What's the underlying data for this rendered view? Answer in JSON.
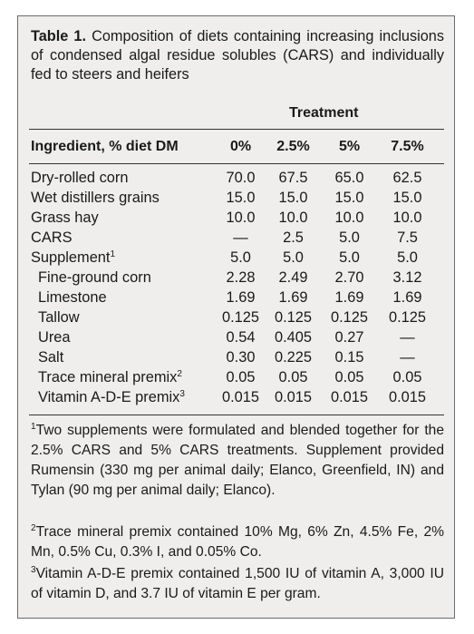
{
  "caption": {
    "label": "Table 1.",
    "text": "Composition of diets containing increasing inclusions of condensed algal residue solubles (CARS) and individually fed to steers and heifers"
  },
  "spanner": "Treatment",
  "headers": [
    "Ingredient, % diet DM",
    "0%",
    "2.5%",
    "5%",
    "7.5%"
  ],
  "rows": [
    {
      "name": "Dry-rolled corn",
      "sup": "",
      "indent": false,
      "values": [
        "70.0",
        "67.5",
        "65.0",
        "62.5"
      ]
    },
    {
      "name": "Wet distillers grains",
      "sup": "",
      "indent": false,
      "values": [
        "15.0",
        "15.0",
        "15.0",
        "15.0"
      ]
    },
    {
      "name": "Grass hay",
      "sup": "",
      "indent": false,
      "values": [
        "10.0",
        "10.0",
        "10.0",
        "10.0"
      ]
    },
    {
      "name": "CARS",
      "sup": "",
      "indent": false,
      "values": [
        "—",
        "2.5",
        "5.0",
        "7.5"
      ]
    },
    {
      "name": "Supplement",
      "sup": "1",
      "indent": false,
      "values": [
        "5.0",
        "5.0",
        "5.0",
        "5.0"
      ]
    },
    {
      "name": "Fine-ground corn",
      "sup": "",
      "indent": true,
      "values": [
        "2.28",
        "2.49",
        "2.70",
        "3.12"
      ]
    },
    {
      "name": "Limestone",
      "sup": "",
      "indent": true,
      "values": [
        "1.69",
        "1.69",
        "1.69",
        "1.69"
      ]
    },
    {
      "name": "Tallow",
      "sup": "",
      "indent": true,
      "values": [
        "0.125",
        "0.125",
        "0.125",
        "0.125"
      ]
    },
    {
      "name": "Urea",
      "sup": "",
      "indent": true,
      "values": [
        "0.54",
        "0.405",
        "0.27",
        "—"
      ]
    },
    {
      "name": "Salt",
      "sup": "",
      "indent": true,
      "values": [
        "0.30",
        "0.225",
        "0.15",
        "—"
      ]
    },
    {
      "name": "Trace mineral premix",
      "sup": "2",
      "indent": true,
      "values": [
        "0.05",
        "0.05",
        "0.05",
        "0.05"
      ]
    },
    {
      "name": "Vitamin A-D-E premix",
      "sup": "3",
      "indent": true,
      "values": [
        "0.015",
        "0.015",
        "0.015",
        "0.015"
      ]
    }
  ],
  "footnotes": [
    {
      "mark": "1",
      "text": "Two supplements were formulated and blended together for the 2.5% CARS and 5% CARS treatments. Supplement provided Rumensin (330 mg per animal daily; Elanco, Greenfield, IN) and Tylan (90 mg per animal daily; Elanco)."
    },
    {
      "mark": "2",
      "text": "Trace mineral premix contained 10% Mg, 6% Zn, 4.5% Fe, 2% Mn, 0.5% Cu, 0.3% I, and 0.05% Co."
    },
    {
      "mark": "3",
      "text": "Vitamin A-D-E premix contained 1,500 IU of vitamin A, 3,000 IU of vitamin D, and 3.7 IU of vitamin E per gram."
    }
  ]
}
